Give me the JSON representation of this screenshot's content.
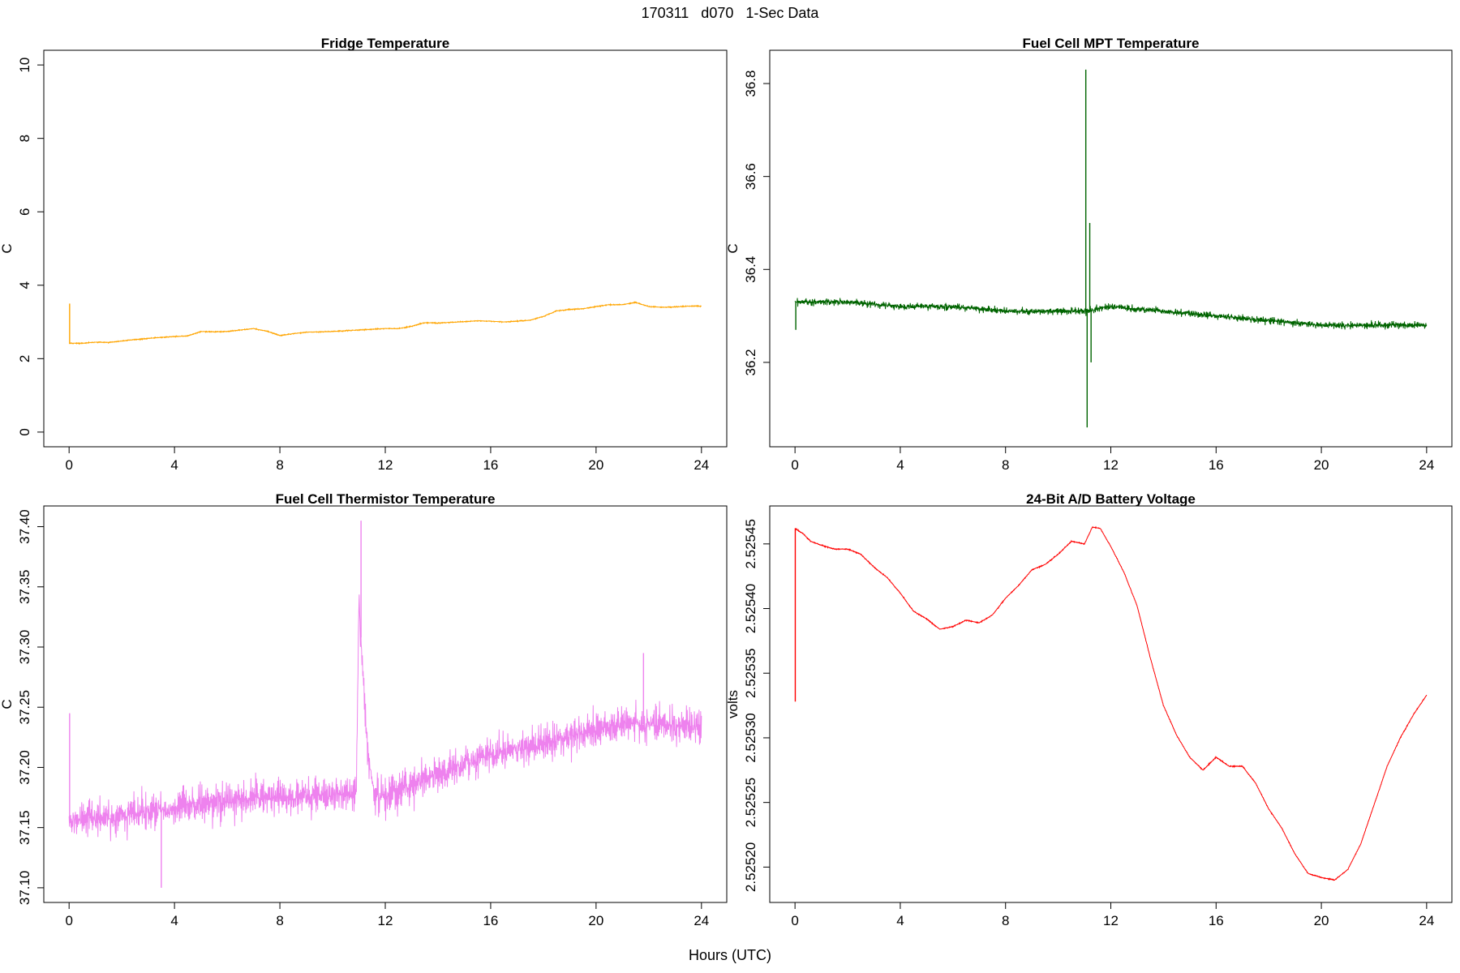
{
  "figure": {
    "title": "170311   d070   1-Sec Data",
    "xlabel": "Hours (UTC)"
  },
  "chart_data": [
    {
      "type": "line",
      "title": "Fridge Temperature",
      "ylabel": "C",
      "xlabel": "",
      "xlim": [
        0,
        24
      ],
      "ylim": [
        0,
        10
      ],
      "xticks": [
        0,
        4,
        8,
        12,
        16,
        20,
        24
      ],
      "yticks": [
        0,
        2,
        4,
        6,
        8,
        10
      ],
      "ytick_labels": [
        "0",
        "2",
        "4",
        "6",
        "8",
        "10"
      ],
      "color": "#FFA500",
      "noise": 0.04,
      "spikes": [
        {
          "x": 0.02,
          "y": 3.5
        }
      ],
      "series": [
        {
          "x": [
            0,
            0.5,
            1,
            1.5,
            2,
            2.5,
            3,
            3.5,
            4,
            4.5,
            5,
            5.5,
            6,
            6.5,
            7,
            7.5,
            8,
            8.5,
            9,
            9.5,
            10,
            10.5,
            11,
            11.5,
            12,
            12.5,
            13,
            13.5,
            14,
            14.5,
            15,
            15.5,
            16,
            16.5,
            17,
            17.5,
            18,
            18.5,
            19,
            19.5,
            20,
            20.5,
            21,
            21.5,
            22,
            22.5,
            23,
            23.5,
            24
          ],
          "y": [
            2.42,
            2.42,
            2.45,
            2.44,
            2.48,
            2.52,
            2.55,
            2.58,
            2.6,
            2.62,
            2.74,
            2.73,
            2.74,
            2.78,
            2.82,
            2.75,
            2.63,
            2.68,
            2.72,
            2.73,
            2.74,
            2.76,
            2.78,
            2.8,
            2.82,
            2.82,
            2.88,
            2.98,
            2.97,
            2.99,
            3.01,
            3.03,
            3.02,
            3.0,
            3.02,
            3.05,
            3.15,
            3.3,
            3.34,
            3.36,
            3.42,
            3.47,
            3.47,
            3.53,
            3.42,
            3.4,
            3.41,
            3.43,
            3.43
          ]
        }
      ]
    },
    {
      "type": "line",
      "title": "Fuel Cell MPT Temperature",
      "ylabel": "C",
      "xlabel": "",
      "xlim": [
        0,
        24
      ],
      "ylim": [
        36.05,
        36.84
      ],
      "xticks": [
        0,
        4,
        8,
        12,
        16,
        20,
        24
      ],
      "yticks": [
        36.2,
        36.4,
        36.6,
        36.8
      ],
      "ytick_labels": [
        "36.2",
        "36.4",
        "36.6",
        "36.8"
      ],
      "color": "#006400",
      "noise": 0.022,
      "spikes": [
        {
          "x": 11.05,
          "y": 36.83
        },
        {
          "x": 11.1,
          "y": 36.06
        },
        {
          "x": 11.2,
          "y": 36.5
        },
        {
          "x": 11.25,
          "y": 36.2
        },
        {
          "x": 0.03,
          "y": 36.27
        }
      ],
      "series": [
        {
          "x": [
            0,
            2,
            4,
            6,
            8,
            10,
            11,
            12,
            14,
            16,
            18,
            20,
            22,
            24
          ],
          "y": [
            36.33,
            36.33,
            36.32,
            36.32,
            36.31,
            36.31,
            36.31,
            36.32,
            36.31,
            36.3,
            36.29,
            36.28,
            36.28,
            36.28
          ]
        }
      ]
    },
    {
      "type": "line",
      "title": "Fuel Cell Thermistor Temperature",
      "ylabel": "C",
      "xlabel": "",
      "xlim": [
        0,
        24
      ],
      "ylim": [
        37.1,
        37.405
      ],
      "xticks": [
        0,
        4,
        8,
        12,
        16,
        20,
        24
      ],
      "yticks": [
        37.1,
        37.15,
        37.2,
        37.25,
        37.3,
        37.35,
        37.4
      ],
      "ytick_labels": [
        "37.10",
        "37.15",
        "37.20",
        "37.25",
        "37.30",
        "37.35",
        "37.40"
      ],
      "color": "#EE82EE",
      "noise": 0.045,
      "spikes": [
        {
          "x": 0.02,
          "y": 37.245
        },
        {
          "x": 11.08,
          "y": 37.405
        },
        {
          "x": 3.5,
          "y": 37.1
        },
        {
          "x": 21.8,
          "y": 37.295
        }
      ],
      "series": [
        {
          "x": [
            0,
            1,
            2,
            3,
            4,
            5,
            6,
            7,
            8,
            9,
            10,
            10.9,
            11,
            11.1,
            11.3,
            11.6,
            12,
            13,
            14,
            15,
            16,
            17,
            18,
            19,
            20,
            21,
            22,
            23,
            24
          ],
          "y": [
            37.155,
            37.157,
            37.16,
            37.163,
            37.166,
            37.17,
            37.172,
            37.174,
            37.175,
            37.176,
            37.177,
            37.178,
            37.34,
            37.3,
            37.22,
            37.175,
            37.178,
            37.186,
            37.195,
            37.203,
            37.21,
            37.215,
            37.22,
            37.226,
            37.232,
            37.236,
            37.236,
            37.234,
            37.232
          ]
        }
      ]
    },
    {
      "type": "line",
      "title": "24-Bit A/D Battery Voltage",
      "ylabel": "volts",
      "xlabel": "",
      "xlim": [
        0,
        24
      ],
      "ylim": [
        2.525184,
        2.525468
      ],
      "xticks": [
        0,
        4,
        8,
        12,
        16,
        20,
        24
      ],
      "yticks": [
        2.5252,
        2.52525,
        2.5253,
        2.52535,
        2.5254,
        2.52545
      ],
      "ytick_labels": [
        "2.52520",
        "2.52525",
        "2.52530",
        "2.52535",
        "2.52540",
        "2.52545"
      ],
      "color": "#FF0000",
      "noise": 1.2e-06,
      "spikes": [
        {
          "x": 0.01,
          "y": 2.525328
        }
      ],
      "series": [
        {
          "x": [
            0,
            0.3,
            0.6,
            1,
            1.5,
            2,
            2.5,
            3,
            3.5,
            4,
            4.5,
            5,
            5.5,
            6,
            6.5,
            7,
            7.5,
            8,
            8.5,
            9,
            9.5,
            10,
            10.5,
            11,
            11.3,
            11.6,
            12,
            12.5,
            13,
            13.5,
            14,
            14.5,
            15,
            15.5,
            16,
            16.5,
            17,
            17.5,
            18,
            18.5,
            19,
            19.5,
            20,
            20.5,
            21,
            21.5,
            22,
            22.5,
            23,
            23.5,
            24
          ],
          "y": [
            2.525462,
            2.525458,
            2.525452,
            2.525449,
            2.525446,
            2.525446,
            2.525442,
            2.525432,
            2.525424,
            2.525412,
            2.525398,
            2.525392,
            2.525384,
            2.525386,
            2.525391,
            2.525389,
            2.525395,
            2.525408,
            2.525418,
            2.52543,
            2.525434,
            2.525442,
            2.525452,
            2.52545,
            2.525463,
            2.525462,
            2.525448,
            2.525428,
            2.525402,
            2.525362,
            2.525325,
            2.525302,
            2.525285,
            2.525275,
            2.525285,
            2.525278,
            2.525278,
            2.525265,
            2.525245,
            2.52523,
            2.52521,
            2.525195,
            2.525192,
            2.52519,
            2.525198,
            2.525218,
            2.525248,
            2.525278,
            2.5253,
            2.525318,
            2.525333
          ]
        }
      ]
    }
  ]
}
